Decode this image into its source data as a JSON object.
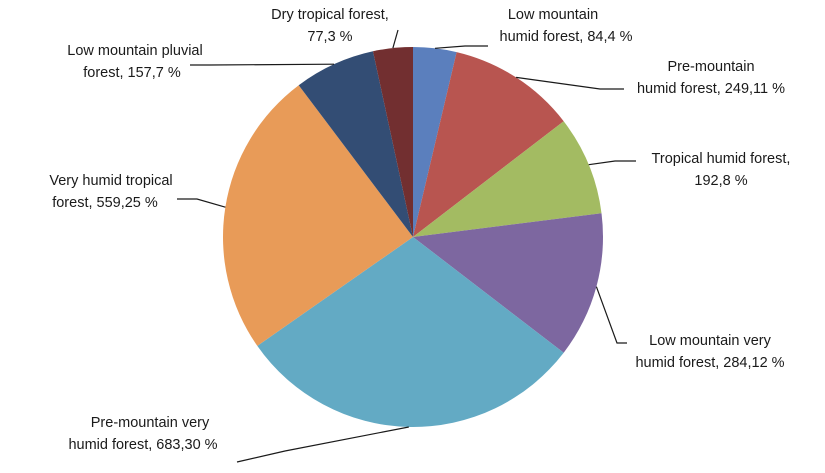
{
  "chart_data": {
    "type": "pie",
    "title": "",
    "unit": "%",
    "slices": [
      {
        "line1": "Low mountain",
        "line2": "humid forest, 84,4 %",
        "value": 84.4,
        "color": "#5b7fbd"
      },
      {
        "line1": "Pre-mountain",
        "line2": "humid forest, 249,11 %",
        "value": 249.11,
        "color": "#b85550"
      },
      {
        "line1": "Tropical humid forest,",
        "line2": "192,8 %",
        "value": 192.8,
        "color": "#a3bb62"
      },
      {
        "line1": "Low mountain very",
        "line2": "humid forest, 284,12 %",
        "value": 284.12,
        "color": "#7d67a0"
      },
      {
        "line1": "Pre-mountain very",
        "line2": "humid forest, 683,30 %",
        "value": 683.3,
        "color": "#63aac4"
      },
      {
        "line1": "Very humid tropical",
        "line2": "forest, 559,25 %",
        "value": 559.25,
        "color": "#e89b58"
      },
      {
        "line1": "Low mountain pluvial",
        "line2": "forest, 157,7 %",
        "value": 157.7,
        "color": "#334d74"
      },
      {
        "line1": "Dry tropical forest,",
        "line2": "77,3 %",
        "value": 77.3,
        "color": "#722f30"
      }
    ]
  }
}
